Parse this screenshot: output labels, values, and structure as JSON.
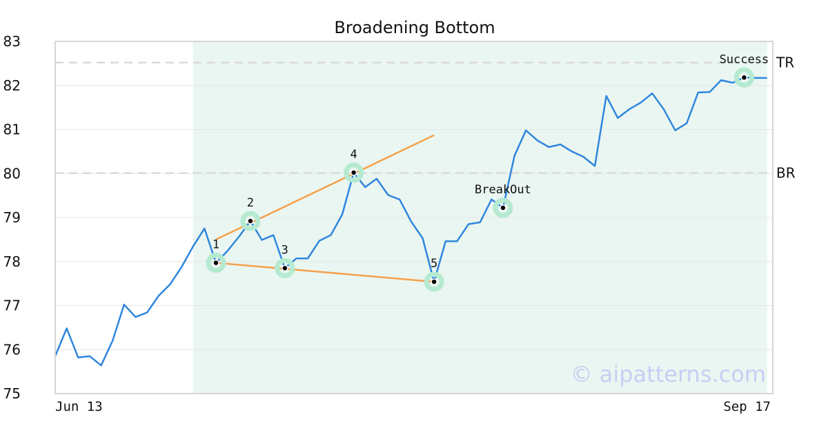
{
  "chart_data": {
    "type": "line",
    "title": "Broadening Bottom",
    "xlabel": "",
    "ylabel": "",
    "ylim": [
      75,
      83
    ],
    "yticks": [
      75,
      76,
      77,
      78,
      79,
      80,
      81,
      82,
      83
    ],
    "x_tick_labels": [
      "Jun 13",
      "Sep 17"
    ],
    "grid": true,
    "colors": {
      "price": "#2e86de",
      "trendline": "#f5a04a",
      "highlight": "#eaf6f1",
      "marker_ring": "#b5ead0",
      "level_line": "#d9d9d9"
    },
    "series": [
      {
        "values": [
          75.85,
          76.48,
          75.82,
          75.85,
          75.64,
          76.2,
          77.02,
          76.74,
          76.84,
          77.22,
          77.48,
          77.87,
          78.34,
          78.75,
          77.97,
          78.24,
          78.56,
          78.92,
          78.49,
          78.6,
          77.85,
          78.07,
          78.07,
          78.47,
          78.6,
          79.07,
          80.02,
          79.69,
          79.88,
          79.51,
          79.41,
          78.91,
          78.53,
          77.54,
          78.46,
          78.46,
          78.85,
          78.89,
          79.41,
          79.22,
          80.4,
          80.98,
          80.75,
          80.6,
          80.66,
          80.5,
          80.38,
          80.17,
          81.76,
          81.26,
          81.46,
          81.61,
          81.82,
          81.46,
          80.98,
          81.14,
          81.84,
          81.85,
          82.12,
          82.06,
          82.18,
          82.17,
          82.17
        ]
      }
    ],
    "levels": [
      {
        "label": "TR",
        "value": 82.52
      },
      {
        "label": "BR",
        "value": 80.01
      }
    ],
    "highlight_range": {
      "start_index": 12,
      "end_index": 62
    },
    "trendlines": [
      {
        "from": {
          "index": 14,
          "value": 78.5
        },
        "to": {
          "index": 33,
          "value": 80.87
        }
      },
      {
        "from": {
          "index": 14,
          "value": 77.97
        },
        "to": {
          "index": 33,
          "value": 77.54
        }
      }
    ],
    "points": [
      {
        "label": "1",
        "index": 14,
        "value": 77.97,
        "label_pos": "above"
      },
      {
        "label": "2",
        "index": 17,
        "value": 78.92,
        "label_pos": "above"
      },
      {
        "label": "3",
        "index": 20,
        "value": 77.85,
        "label_pos": "above"
      },
      {
        "label": "4",
        "index": 26,
        "value": 80.02,
        "label_pos": "above"
      },
      {
        "label": "5",
        "index": 33,
        "value": 77.54,
        "label_pos": "above"
      },
      {
        "label": "BreakOut",
        "index": 39,
        "value": 79.22,
        "label_pos": "above"
      },
      {
        "label": "Success",
        "index": 60,
        "value": 82.18,
        "label_pos": "above"
      }
    ],
    "watermark": "© aipatterns.com"
  }
}
